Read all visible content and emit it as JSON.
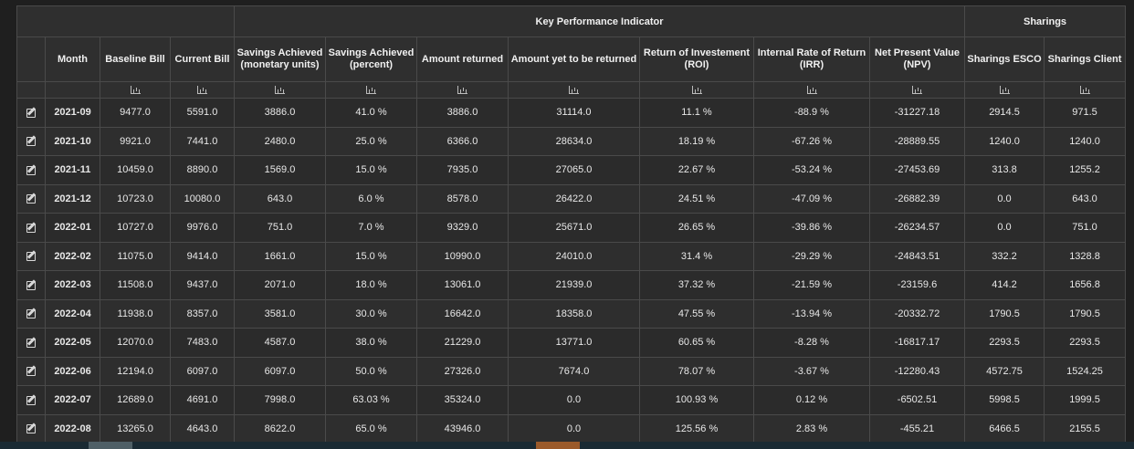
{
  "table": {
    "groups": {
      "kpi": "Key Performance Indicator",
      "sharings": "Sharings"
    },
    "columns": [
      "Month",
      "Baseline Bill",
      "Current Bill",
      "Savings Achieved (monetary units)",
      "Savings Achieved (percent)",
      "Amount returned",
      "Amount yet to be returned",
      "Return of Investement (ROI)",
      "Internal Rate of Return (IRR)",
      "Net Present Value (NPV)",
      "Sharings ESCO",
      "Sharings Client"
    ],
    "column_icon": "bar-chart-icon",
    "row_icon": "edit-icon",
    "rows": [
      [
        "2021-09",
        "9477.0",
        "5591.0",
        "3886.0",
        "41.0 %",
        "3886.0",
        "31114.0",
        "11.1 %",
        "-88.9 %",
        "-31227.18",
        "2914.5",
        "971.5"
      ],
      [
        "2021-10",
        "9921.0",
        "7441.0",
        "2480.0",
        "25.0 %",
        "6366.0",
        "28634.0",
        "18.19 %",
        "-67.26 %",
        "-28889.55",
        "1240.0",
        "1240.0"
      ],
      [
        "2021-11",
        "10459.0",
        "8890.0",
        "1569.0",
        "15.0 %",
        "7935.0",
        "27065.0",
        "22.67 %",
        "-53.24 %",
        "-27453.69",
        "313.8",
        "1255.2"
      ],
      [
        "2021-12",
        "10723.0",
        "10080.0",
        "643.0",
        "6.0 %",
        "8578.0",
        "26422.0",
        "24.51 %",
        "-47.09 %",
        "-26882.39",
        "0.0",
        "643.0"
      ],
      [
        "2022-01",
        "10727.0",
        "9976.0",
        "751.0",
        "7.0 %",
        "9329.0",
        "25671.0",
        "26.65 %",
        "-39.86 %",
        "-26234.57",
        "0.0",
        "751.0"
      ],
      [
        "2022-02",
        "11075.0",
        "9414.0",
        "1661.0",
        "15.0 %",
        "10990.0",
        "24010.0",
        "31.4 %",
        "-29.29 %",
        "-24843.51",
        "332.2",
        "1328.8"
      ],
      [
        "2022-03",
        "11508.0",
        "9437.0",
        "2071.0",
        "18.0 %",
        "13061.0",
        "21939.0",
        "37.32 %",
        "-21.59 %",
        "-23159.6",
        "414.2",
        "1656.8"
      ],
      [
        "2022-04",
        "11938.0",
        "8357.0",
        "3581.0",
        "30.0 %",
        "16642.0",
        "18358.0",
        "47.55 %",
        "-13.94 %",
        "-20332.72",
        "1790.5",
        "1790.5"
      ],
      [
        "2022-05",
        "12070.0",
        "7483.0",
        "4587.0",
        "38.0 %",
        "21229.0",
        "13771.0",
        "60.65 %",
        "-8.28 %",
        "-16817.17",
        "2293.5",
        "2293.5"
      ],
      [
        "2022-06",
        "12194.0",
        "6097.0",
        "6097.0",
        "50.0 %",
        "27326.0",
        "7674.0",
        "78.07 %",
        "-3.67 %",
        "-12280.43",
        "4572.75",
        "1524.25"
      ],
      [
        "2022-07",
        "12689.0",
        "4691.0",
        "7998.0",
        "63.03 %",
        "35324.0",
        "0.0",
        "100.93 %",
        "0.12 %",
        "-6502.51",
        "5998.5",
        "1999.5"
      ],
      [
        "2022-08",
        "13265.0",
        "4643.0",
        "8622.0",
        "65.0 %",
        "43946.0",
        "0.0",
        "125.56 %",
        "2.83 %",
        "-455.21",
        "6466.5",
        "2155.5"
      ]
    ]
  }
}
